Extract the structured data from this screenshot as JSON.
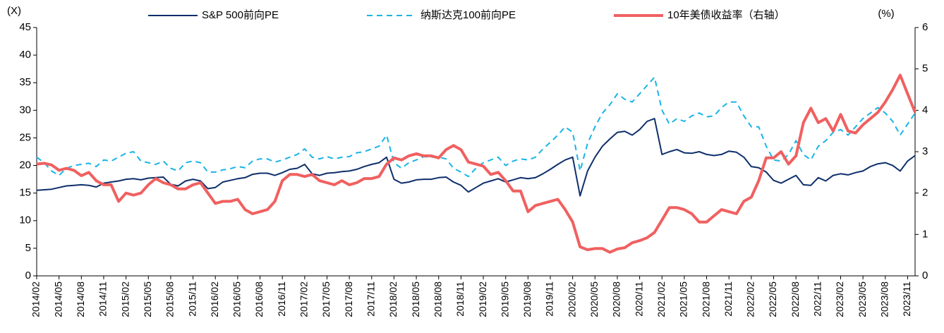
{
  "chart_data": {
    "type": "line",
    "y_label": "(X)",
    "y2_label": "(%)",
    "categories": [
      "2014/02",
      null,
      null,
      "2014/05",
      null,
      null,
      "2014/08",
      null,
      null,
      "2014/11",
      null,
      null,
      "2015/02",
      null,
      null,
      "2015/05",
      null,
      null,
      "2015/08",
      null,
      null,
      "2015/11",
      null,
      null,
      "2016/02",
      null,
      null,
      "2016/05",
      null,
      null,
      "2016/08",
      null,
      null,
      "2016/11",
      null,
      null,
      "2017/02",
      null,
      null,
      "2017/05",
      null,
      null,
      "2017/08",
      null,
      null,
      "2017/11",
      null,
      null,
      "2018/02",
      null,
      null,
      "2018/05",
      null,
      null,
      "2018/08",
      null,
      null,
      "2018/11",
      null,
      null,
      "2019/02",
      null,
      null,
      "2019/05",
      null,
      null,
      "2019/08",
      null,
      null,
      "2019/11",
      null,
      null,
      "2020/02",
      null,
      null,
      "2020/05",
      null,
      null,
      "2020/08",
      null,
      null,
      "2020/11",
      null,
      null,
      "2021/02",
      null,
      null,
      "2021/05",
      null,
      null,
      "2021/08",
      null,
      null,
      "2021/11",
      null,
      null,
      "2022/02",
      null,
      null,
      "2022/05",
      null,
      null,
      "2022/08",
      null,
      null,
      "2022/11",
      null,
      null,
      "2023/02",
      null,
      null,
      "2023/05",
      null,
      null,
      "2023/08",
      null,
      null,
      "2023/11",
      null
    ],
    "series": [
      {
        "name": "S&P 500前向PE",
        "color": "#0e2f6b",
        "axis": "y",
        "dash": false,
        "width": 2,
        "values": [
          15.5,
          15.6,
          15.7,
          16,
          16.3,
          16.4,
          16.5,
          16.4,
          16.1,
          16.8,
          17,
          17.2,
          17.5,
          17.6,
          17.4,
          17.7,
          17.8,
          17.9,
          16.6,
          16.3,
          17.2,
          17.5,
          17.2,
          15.8,
          16,
          17,
          17.3,
          17.6,
          17.8,
          18.4,
          18.6,
          18.6,
          18.2,
          18.7,
          19.3,
          19.5,
          20.2,
          18.5,
          18.2,
          18.6,
          18.7,
          18.9,
          19,
          19.3,
          19.8,
          20.2,
          20.5,
          21.5,
          17.5,
          16.8,
          17,
          17.4,
          17.5,
          17.5,
          17.8,
          17.9,
          17,
          16.4,
          15.2,
          16,
          16.8,
          17.2,
          17.6,
          17,
          17.4,
          17.8,
          17.6,
          17.8,
          18.5,
          19.3,
          20.2,
          21,
          21.5,
          14.5,
          19,
          21.5,
          23.5,
          24.8,
          26,
          26.2,
          25.5,
          26.5,
          28,
          28.5,
          22,
          22.5,
          22.9,
          22.3,
          22.2,
          22.5,
          22,
          21.8,
          22,
          22.6,
          22.4,
          21.5,
          19.8,
          19.6,
          18.8,
          17.3,
          16.8,
          17.5,
          18.2,
          16.5,
          16.4,
          17.8,
          17.2,
          18.2,
          18.5,
          18.3,
          18.7,
          19,
          19.8,
          20.3,
          20.5,
          20,
          19,
          20.8,
          21.8
        ]
      },
      {
        "name": "纳斯达克100前向PE",
        "color": "#19b4e6",
        "axis": "y",
        "dash": true,
        "width": 2,
        "values": [
          21.5,
          20.5,
          19,
          18.2,
          19.5,
          20,
          20.2,
          20.4,
          19.8,
          21,
          20.8,
          21.5,
          22.2,
          22.5,
          20.8,
          20.5,
          20.2,
          20.8,
          19.5,
          19,
          20.5,
          20.8,
          20.5,
          18.8,
          18.8,
          19.2,
          19.4,
          19.8,
          19.6,
          20.8,
          21.2,
          21.2,
          20.6,
          21,
          21.5,
          22,
          23,
          21.5,
          21.2,
          21.6,
          21.2,
          21.5,
          21.6,
          22.3,
          22.5,
          23,
          23.5,
          25.5,
          20.5,
          19.5,
          20.5,
          21,
          21.6,
          21.5,
          21.5,
          21.2,
          19.5,
          18.8,
          18,
          19.5,
          20.5,
          21,
          21.5,
          20,
          20.8,
          21.2,
          21,
          21.5,
          23,
          24.2,
          25.5,
          27,
          26,
          19,
          24,
          27,
          29.5,
          31,
          33,
          32,
          31.5,
          33,
          34.5,
          36,
          30,
          27.5,
          28.5,
          28,
          29,
          29.5,
          28.8,
          29,
          30.5,
          31.5,
          31.5,
          29,
          27,
          27,
          23.5,
          21,
          20.8,
          22,
          24.5,
          22,
          21,
          23.5,
          24.5,
          26,
          26.5,
          25.5,
          27,
          28.5,
          29.5,
          30.5,
          29.5,
          28,
          25.5,
          27.5,
          29.5
        ]
      },
      {
        "name": "10年美债收益率（右轴）",
        "color": "#f06060",
        "axis": "y2",
        "dash": false,
        "width": 4,
        "values": [
          2.7,
          2.72,
          2.68,
          2.55,
          2.6,
          2.55,
          2.42,
          2.5,
          2.3,
          2.2,
          2.2,
          1.8,
          2.0,
          1.95,
          2.0,
          2.2,
          2.35,
          2.25,
          2.2,
          2.1,
          2.1,
          2.2,
          2.25,
          2.0,
          1.75,
          1.8,
          1.8,
          1.85,
          1.6,
          1.5,
          1.55,
          1.6,
          1.8,
          2.3,
          2.45,
          2.45,
          2.4,
          2.45,
          2.3,
          2.25,
          2.2,
          2.3,
          2.2,
          2.25,
          2.35,
          2.35,
          2.4,
          2.7,
          2.85,
          2.8,
          2.9,
          2.95,
          2.9,
          2.9,
          2.85,
          3.05,
          3.15,
          3.05,
          2.75,
          2.7,
          2.65,
          2.45,
          2.5,
          2.3,
          2.05,
          2.05,
          1.55,
          1.7,
          1.75,
          1.8,
          1.85,
          1.6,
          1.3,
          0.7,
          0.63,
          0.66,
          0.66,
          0.57,
          0.65,
          0.68,
          0.8,
          0.85,
          0.92,
          1.05,
          1.35,
          1.65,
          1.65,
          1.6,
          1.5,
          1.3,
          1.3,
          1.45,
          1.6,
          1.55,
          1.5,
          1.8,
          1.9,
          2.3,
          2.85,
          2.85,
          3.0,
          2.7,
          2.9,
          3.7,
          4.05,
          3.7,
          3.8,
          3.5,
          3.9,
          3.5,
          3.45,
          3.65,
          3.8,
          3.95,
          4.2,
          4.5,
          4.85,
          4.4,
          3.95
        ]
      }
    ],
    "ylim": [
      0,
      45
    ],
    "yticks": [
      0,
      5,
      10,
      15,
      20,
      25,
      30,
      35,
      40,
      45
    ],
    "y2lim": [
      0,
      6
    ],
    "y2ticks": [
      0,
      1,
      2,
      3,
      4,
      5,
      6
    ],
    "legend": "top",
    "grid": false
  }
}
